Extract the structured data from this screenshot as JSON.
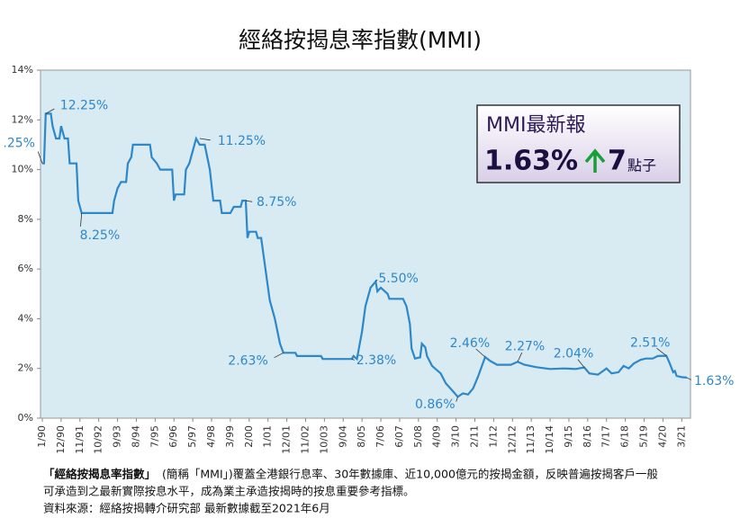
{
  "chart_data": {
    "type": "line",
    "title": "經絡按揭息率指數(MMI)",
    "color": "#2e87c8",
    "x": [
      "1/90",
      "2/90",
      "3/90",
      "6/90",
      "7/90",
      "9/90",
      "11/90",
      "12/90",
      "2/91",
      "4/91",
      "5/91",
      "9/91",
      "10/91",
      "11/91",
      "12/91",
      "6/93",
      "7/93",
      "9/93",
      "11/93",
      "2/94",
      "3/94",
      "5/94",
      "6/94",
      "11/94",
      "4/95",
      "5/95",
      "8/95",
      "10/95",
      "3/96",
      "5/96",
      "6/96",
      "7/96",
      "12/96",
      "1/97",
      "3/97",
      "6/97",
      "7/97",
      "9/97",
      "12/97",
      "3/98",
      "5/98",
      "9/98",
      "10/98",
      "3/99",
      "5/99",
      "9/99",
      "10/99",
      "12/99",
      "1/00",
      "2/00",
      "6/00",
      "7/00",
      "9/00",
      "11/00",
      "2/01",
      "5/01",
      "8/01",
      "10/01",
      "5/02",
      "6/02",
      "8/03",
      "9/03",
      "2/05",
      "3/05",
      "5/05",
      "8/05",
      "10/05",
      "1/06",
      "4/06",
      "5/06",
      "7/06",
      "11/06",
      "12/06",
      "8/07",
      "10/07",
      "12/07",
      "1/08",
      "3/08",
      "6/08",
      "7/08",
      "9/08",
      "10/08",
      "1/09",
      "6/09",
      "9/09",
      "1/10",
      "4/10",
      "7/10",
      "10/10",
      "1/11",
      "4/11",
      "8/11",
      "11/11",
      "3/12",
      "11/12",
      "3/13",
      "7/13",
      "2/14",
      "10/14",
      "6/15",
      "1/16",
      "6/16",
      "9/16",
      "2/17",
      "7/17",
      "10/17",
      "2/18",
      "5/18",
      "8/18",
      "11/18",
      "3/19",
      "6/19",
      "10/19",
      "1/20",
      "6/20",
      "8/20",
      "10/20",
      "11/20",
      "12/20",
      "3/21",
      "6/21"
    ],
    "values": [
      10.25,
      10.25,
      12.25,
      12.25,
      11.75,
      11.25,
      11.25,
      11.75,
      11.25,
      11.25,
      10.25,
      10.25,
      8.75,
      8.5,
      8.25,
      8.25,
      8.75,
      9.25,
      9.5,
      9.5,
      10.25,
      10.5,
      11.0,
      11.0,
      11.0,
      10.5,
      10.25,
      10.0,
      10.0,
      10.0,
      8.75,
      9.0,
      9.0,
      10.0,
      10.25,
      11.0,
      11.25,
      11.0,
      11.0,
      10.0,
      8.75,
      8.75,
      8.25,
      8.25,
      8.5,
      8.5,
      8.75,
      8.75,
      7.25,
      7.5,
      7.5,
      7.25,
      7.25,
      6.25,
      4.75,
      4.0,
      3.0,
      2.63,
      2.63,
      2.5,
      2.5,
      2.38,
      2.38,
      2.5,
      2.38,
      3.5,
      4.5,
      5.25,
      5.5,
      5.1,
      5.25,
      5.0,
      4.8,
      4.8,
      4.5,
      3.8,
      2.8,
      2.4,
      2.45,
      3.0,
      2.85,
      2.5,
      2.1,
      1.8,
      1.4,
      1.1,
      0.86,
      1.0,
      0.95,
      1.2,
      1.7,
      2.46,
      2.3,
      2.15,
      2.15,
      2.27,
      2.15,
      2.05,
      1.98,
      2.0,
      1.98,
      2.04,
      1.8,
      1.75,
      2.0,
      1.8,
      1.85,
      2.1,
      2.0,
      2.2,
      2.35,
      2.4,
      2.4,
      2.5,
      2.51,
      2.2,
      1.85,
      1.9,
      1.7,
      1.65,
      1.63
    ],
    "xlim": [
      "1/90",
      "6/21"
    ],
    "xticks": [
      "1/90",
      "12/90",
      "11/91",
      "10/92",
      "9/93",
      "8/94",
      "7/95",
      "6/96",
      "5/97",
      "4/98",
      "3/99",
      "2/00",
      "1/01",
      "12/01",
      "11/02",
      "10/03",
      "9/04",
      "8/05",
      "7/06",
      "6/07",
      "5/08",
      "4/09",
      "3/10",
      "2/11",
      "1/12",
      "12/12",
      "11/13",
      "10/14",
      "9/15",
      "8/16",
      "7/17",
      "6/18",
      "5/19",
      "4/20",
      "3/21"
    ],
    "ylim": [
      0,
      14
    ],
    "yticks": [
      {
        "value": 0,
        "label": "0%"
      },
      {
        "value": 2,
        "label": "2%"
      },
      {
        "value": 4,
        "label": "4%"
      },
      {
        "value": 6,
        "label": "6%"
      },
      {
        "value": 8,
        "label": "8%"
      },
      {
        "value": 10,
        "label": "10%"
      },
      {
        "value": 12,
        "label": "12%"
      },
      {
        "value": 14,
        "label": "14%"
      }
    ],
    "grid": false,
    "annotations": [
      {
        "text": ".25%",
        "x": "1/90",
        "y": 10.25
      },
      {
        "text": "12.25%",
        "x": "3/90",
        "y": 12.25
      },
      {
        "text": "11.25%",
        "x": "9/97",
        "y": 11.25
      },
      {
        "text": "8.25%",
        "x": "12/91",
        "y": 8.25
      },
      {
        "text": "8.75%",
        "x": "12/99",
        "y": 8.75
      },
      {
        "text": "2.63%",
        "x": "10/01",
        "y": 2.63
      },
      {
        "text": "2.38%",
        "x": "2/05",
        "y": 2.38
      },
      {
        "text": "5.50%",
        "x": "4/06",
        "y": 5.5
      },
      {
        "text": "0.86%",
        "x": "4/10",
        "y": 0.86
      },
      {
        "text": "2.46%",
        "x": "8/11",
        "y": 2.46
      },
      {
        "text": "2.27%",
        "x": "3/13",
        "y": 2.27
      },
      {
        "text": "2.04%",
        "x": "6/16",
        "y": 2.04
      },
      {
        "text": "2.51%",
        "x": "6/20",
        "y": 2.51
      },
      {
        "text": "1.63%",
        "x": "6/21",
        "y": 1.63
      }
    ],
    "info_box": {
      "title": "MMI最新報",
      "rate": "1.63%",
      "change": "7",
      "unit": "點子"
    },
    "footer": {
      "bold": "「經絡按揭息率指數」",
      "line1": "(簡稱「MMI」)覆蓋全港銀行息率、30年數據庫、近10,000億元的按揭金額，反映普遍按揭客戶一般",
      "line2": "可承造到之最新實際按息水平，成為業主承造按揭時的按息重要參考指標。",
      "source": "資料來源：經絡按揭轉介研究部 最新數據截至2021年6月"
    }
  }
}
